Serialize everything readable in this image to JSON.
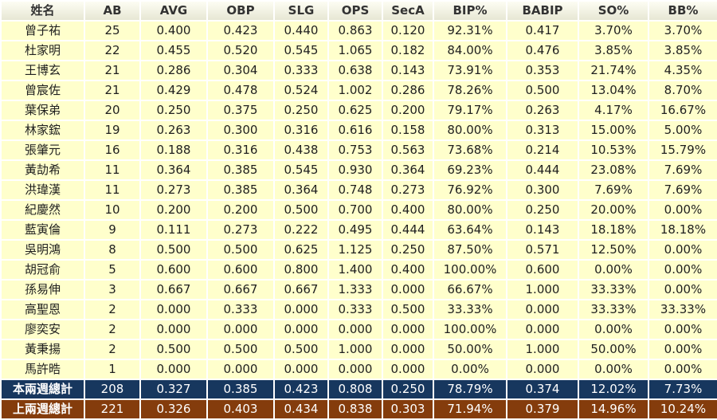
{
  "chart_data": {
    "type": "table",
    "title": "",
    "columns": [
      "姓名",
      "AB",
      "AVG",
      "OBP",
      "SLG",
      "OPS",
      "SecA",
      "BIP%",
      "BABIP",
      "SO%",
      "BB%"
    ],
    "rows": [
      [
        "曾子祐",
        "25",
        "0.400",
        "0.423",
        "0.440",
        "0.863",
        "0.120",
        "92.31%",
        "0.417",
        "3.70%",
        "3.70%"
      ],
      [
        "杜家明",
        "22",
        "0.455",
        "0.520",
        "0.545",
        "1.065",
        "0.182",
        "84.00%",
        "0.476",
        "3.85%",
        "3.85%"
      ],
      [
        "王博玄",
        "21",
        "0.286",
        "0.304",
        "0.333",
        "0.638",
        "0.143",
        "73.91%",
        "0.353",
        "21.74%",
        "4.35%"
      ],
      [
        "曾宸佐",
        "21",
        "0.429",
        "0.478",
        "0.524",
        "1.002",
        "0.286",
        "78.26%",
        "0.500",
        "13.04%",
        "8.70%"
      ],
      [
        "葉保弟",
        "20",
        "0.250",
        "0.375",
        "0.250",
        "0.625",
        "0.200",
        "79.17%",
        "0.263",
        "4.17%",
        "16.67%"
      ],
      [
        "林家鋐",
        "19",
        "0.263",
        "0.300",
        "0.316",
        "0.616",
        "0.158",
        "80.00%",
        "0.313",
        "15.00%",
        "5.00%"
      ],
      [
        "張肇元",
        "16",
        "0.188",
        "0.316",
        "0.438",
        "0.753",
        "0.563",
        "73.68%",
        "0.214",
        "10.53%",
        "15.79%"
      ],
      [
        "黃劼希",
        "11",
        "0.364",
        "0.385",
        "0.545",
        "0.930",
        "0.364",
        "69.23%",
        "0.444",
        "23.08%",
        "7.69%"
      ],
      [
        "洪瑋漢",
        "11",
        "0.273",
        "0.385",
        "0.364",
        "0.748",
        "0.273",
        "76.92%",
        "0.300",
        "7.69%",
        "7.69%"
      ],
      [
        "紀慶然",
        "10",
        "0.200",
        "0.200",
        "0.500",
        "0.700",
        "0.400",
        "80.00%",
        "0.250",
        "20.00%",
        "0.00%"
      ],
      [
        "藍寅倫",
        "9",
        "0.111",
        "0.273",
        "0.222",
        "0.495",
        "0.444",
        "63.64%",
        "0.143",
        "18.18%",
        "18.18%"
      ],
      [
        "吳明鴻",
        "8",
        "0.500",
        "0.500",
        "0.625",
        "1.125",
        "0.250",
        "87.50%",
        "0.571",
        "12.50%",
        "0.00%"
      ],
      [
        "胡冠俞",
        "5",
        "0.600",
        "0.600",
        "0.800",
        "1.400",
        "0.400",
        "100.00%",
        "0.600",
        "0.00%",
        "0.00%"
      ],
      [
        "孫易伸",
        "3",
        "0.667",
        "0.667",
        "0.667",
        "1.333",
        "0.000",
        "66.67%",
        "1.000",
        "33.33%",
        "0.00%"
      ],
      [
        "高聖恩",
        "2",
        "0.000",
        "0.333",
        "0.000",
        "0.333",
        "0.500",
        "33.33%",
        "0.000",
        "33.33%",
        "33.33%"
      ],
      [
        "廖奕安",
        "2",
        "0.000",
        "0.000",
        "0.000",
        "0.000",
        "0.000",
        "100.00%",
        "0.000",
        "0.00%",
        "0.00%"
      ],
      [
        "黃秉揚",
        "2",
        "0.500",
        "0.500",
        "0.500",
        "1.000",
        "0.000",
        "50.00%",
        "1.000",
        "50.00%",
        "0.00%"
      ],
      [
        "馬許晧",
        "1",
        "0.000",
        "0.000",
        "0.000",
        "0.000",
        "0.000",
        "0.00%",
        "0.000",
        "0.00%",
        "0.00%"
      ]
    ],
    "totals": [
      {
        "label": "本兩週總計",
        "values": [
          "208",
          "0.327",
          "0.385",
          "0.423",
          "0.808",
          "0.250",
          "78.79%",
          "0.374",
          "12.02%",
          "7.73%"
        ]
      },
      {
        "label": "上兩週總計",
        "values": [
          "221",
          "0.326",
          "0.403",
          "0.434",
          "0.838",
          "0.303",
          "71.94%",
          "0.379",
          "14.96%",
          "10.24%"
        ]
      }
    ],
    "layout_hints": {
      "grid": "white 2px separators",
      "alignment": "all cells centered",
      "header_position": "top row"
    }
  },
  "colors": {
    "cell_bg": "#ffffcc",
    "header_bg_top": "#fdfdf3",
    "header_bg_bottom": "#e7e7d4",
    "total_row1_bg": "#17375e",
    "total_row2_bg": "#843c0c",
    "body_text": "#1f1f1f",
    "totals_text": "#ffffff"
  }
}
